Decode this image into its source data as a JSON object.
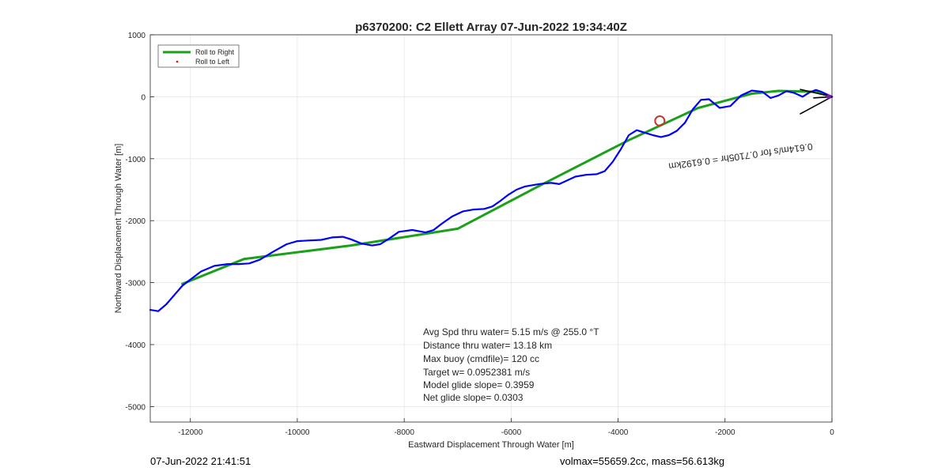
{
  "chart_data": {
    "type": "line",
    "title": "p6370200: C2 Ellett Array 07-Jun-2022 19:34:40Z",
    "xlabel": "Eastward Displacement Through Water [m]",
    "ylabel": "Northward Displacement Through Water [m]",
    "xlim": [
      -12750,
      0
    ],
    "ylim": [
      -5250,
      1000
    ],
    "xticks": [
      -12000,
      -10000,
      -8000,
      -6000,
      -4000,
      -2000,
      0
    ],
    "yticks": [
      -5000,
      -4000,
      -3000,
      -2000,
      -1000,
      0,
      1000
    ],
    "xtick_labels": [
      "-12000",
      "-10000",
      "-8000",
      "-6000",
      "-4000",
      "-2000",
      "0"
    ],
    "ytick_labels": [
      "-5000",
      "-4000",
      "-3000",
      "-2000",
      "-1000",
      "0",
      "1000"
    ],
    "grid": true,
    "legend_position": "top-left",
    "legend": [
      "Roll to Right",
      "Roll to Left"
    ],
    "series": [
      {
        "name": "Roll to Right",
        "color": "#1aa01a",
        "x": [
          -12150,
          -11000,
          -9000,
          -7000,
          -5500,
          -3800,
          -2500,
          -1500,
          -1000,
          -300,
          0
        ],
        "y": [
          -3020,
          -2620,
          -2400,
          -2130,
          -1450,
          -700,
          -180,
          50,
          95,
          80,
          0
        ]
      },
      {
        "name": "Roll to Left",
        "color": "#ff0000",
        "x": [
          -70,
          -40
        ],
        "y": [
          10,
          -10
        ]
      },
      {
        "name": "",
        "color": "#0000ff",
        "x": [
          -12750,
          -12600,
          -12450,
          -12300,
          -12150,
          -12000,
          -11800,
          -11550,
          -11300,
          -11100,
          -10900,
          -10700,
          -10450,
          -10200,
          -10000,
          -9800,
          -9550,
          -9350,
          -9150,
          -9000,
          -8800,
          -8600,
          -8450,
          -8300,
          -8100,
          -7850,
          -7600,
          -7450,
          -7300,
          -7100,
          -6900,
          -6700,
          -6500,
          -6350,
          -6200,
          -6050,
          -5900,
          -5750,
          -5550,
          -5400,
          -5250,
          -5100,
          -4950,
          -4800,
          -4600,
          -4400,
          -4250,
          -4100,
          -3950,
          -3800,
          -3650,
          -3500,
          -3350,
          -3200,
          -3050,
          -2900,
          -2750,
          -2600,
          -2450,
          -2300,
          -2100,
          -1900,
          -1700,
          -1500,
          -1300,
          -1150,
          -1000,
          -850,
          -700,
          -550,
          -420,
          -300,
          -200,
          -100,
          0
        ],
        "y": [
          -3440,
          -3460,
          -3350,
          -3200,
          -3050,
          -2950,
          -2820,
          -2730,
          -2700,
          -2700,
          -2690,
          -2630,
          -2500,
          -2380,
          -2330,
          -2320,
          -2310,
          -2270,
          -2260,
          -2300,
          -2370,
          -2400,
          -2380,
          -2300,
          -2180,
          -2150,
          -2190,
          -2150,
          -2050,
          -1930,
          -1850,
          -1820,
          -1810,
          -1770,
          -1680,
          -1580,
          -1500,
          -1450,
          -1420,
          -1400,
          -1390,
          -1410,
          -1350,
          -1290,
          -1260,
          -1250,
          -1200,
          -1050,
          -850,
          -620,
          -540,
          -580,
          -620,
          -650,
          -620,
          -550,
          -420,
          -200,
          -50,
          -40,
          -180,
          -150,
          20,
          100,
          80,
          -20,
          20,
          90,
          60,
          0,
          70,
          110,
          80,
          40,
          0
        ]
      }
    ],
    "annotations": {
      "stats": [
        "Avg Spd thru water=  5.15 m/s @ 255.0 °T",
        "Distance thru water= 13.18 km",
        "Max buoy (cmdfile)= 120 cc",
        "Target w= 0.0952381 m/s",
        "Model glide slope= 0.3959",
        "Net glide slope= 0.0303"
      ],
      "marker": {
        "x": -3220,
        "y": -390,
        "color": "#c0392b"
      },
      "arrow_label": "0.614m/s for 0.7105hr = 0.6192km"
    }
  },
  "footer": {
    "left": "07-Jun-2022 21:41:51",
    "right": "volmax=55659.2cc, mass=56.613kg"
  }
}
